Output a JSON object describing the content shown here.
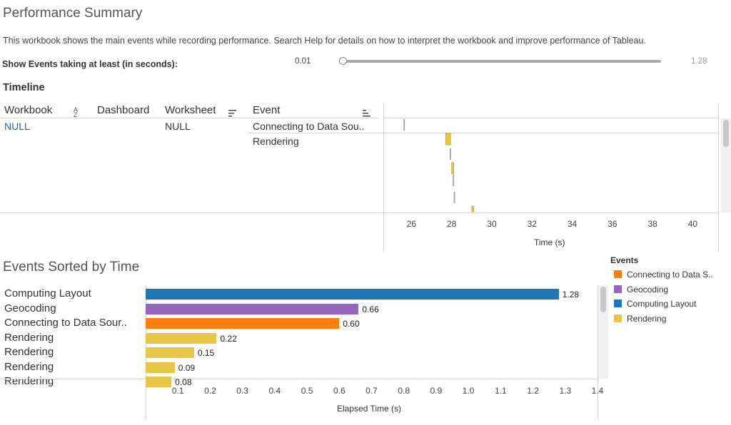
{
  "header": {
    "title": "Performance Summary",
    "description": "This workbook shows the main events while recording performance. Search Help for details on how to interpret the workbook and improve performance of Tableau.",
    "filter_label": "Show Events taking at least (in seconds):",
    "slider_min": "0.01",
    "slider_max": "1.28",
    "slider_value": 0.01
  },
  "timeline": {
    "title": "Timeline",
    "columns": [
      "Workbook",
      "Dashboard",
      "Worksheet",
      "Event"
    ],
    "row": {
      "workbook": "NULL",
      "worksheet": "NULL"
    },
    "events": [
      "Connecting to Data Sou..",
      "Rendering"
    ],
    "x_ticks": [
      "26",
      "28",
      "30",
      "32",
      "34",
      "36",
      "38",
      "40"
    ],
    "x_label": "Time (s)"
  },
  "events_sorted": {
    "title": "Events Sorted by Time",
    "rows": [
      {
        "label": "Computing Layout",
        "value": "1.28"
      },
      {
        "label": "Geocoding",
        "value": "0.66"
      },
      {
        "label": "Connecting to Data Sour..",
        "value": "0.60"
      },
      {
        "label": "Rendering",
        "value": "0.22"
      },
      {
        "label": "Rendering",
        "value": "0.15"
      },
      {
        "label": "Rendering",
        "value": "0.09"
      },
      {
        "label": "Rendering",
        "value": "0.08"
      }
    ],
    "x_ticks": [
      "0.1",
      "0.2",
      "0.3",
      "0.4",
      "0.5",
      "0.6",
      "0.7",
      "0.8",
      "0.9",
      "1.0",
      "1.1",
      "1.2",
      "1.3",
      "1.4"
    ],
    "x_label": "Elapsed Time (s)"
  },
  "legend": {
    "title": "Events",
    "items": [
      {
        "label": "Connecting to Data S..",
        "color": "#ff7f0e"
      },
      {
        "label": "Geocoding",
        "color": "#9467bd"
      },
      {
        "label": "Computing Layout",
        "color": "#1f77b4"
      },
      {
        "label": "Rendering",
        "color": "#e8c547"
      }
    ]
  },
  "chart_data": [
    {
      "type": "bar",
      "orientation": "horizontal",
      "categories": [
        "Computing Layout",
        "Geocoding",
        "Connecting to Data Sour..",
        "Rendering",
        "Rendering",
        "Rendering",
        "Rendering"
      ],
      "values": [
        1.28,
        0.66,
        0.6,
        0.22,
        0.15,
        0.09,
        0.08
      ],
      "colors": [
        "#1f77b4",
        "#9467bd",
        "#ff7f0e",
        "#e8c547",
        "#e8c547",
        "#e8c547",
        "#e8c547"
      ],
      "title": "Events Sorted by Time",
      "xlabel": "Elapsed Time (s)",
      "xlim": [
        0,
        1.4
      ]
    },
    {
      "type": "scatter",
      "title": "Timeline",
      "xlabel": "Time (s)",
      "xlim": [
        24.6,
        41.3
      ],
      "points": [
        {
          "time": 25.6,
          "event": "Connecting to Data Source",
          "color": "#aaaaaa"
        },
        {
          "time": 27.7,
          "event": "Rendering",
          "color": "#e8c547"
        },
        {
          "time": 27.9,
          "event": "Rendering",
          "color": "#aaaaaa"
        },
        {
          "time": 28.0,
          "event": "Rendering",
          "color": "#e8c547"
        },
        {
          "time": 28.05,
          "event": "Rendering",
          "color": "#aaaaaa"
        },
        {
          "time": 28.1,
          "event": "Rendering",
          "color": "#aaaaaa"
        },
        {
          "time": 29.0,
          "event": "Rendering",
          "color": "#e8c547"
        }
      ]
    }
  ]
}
